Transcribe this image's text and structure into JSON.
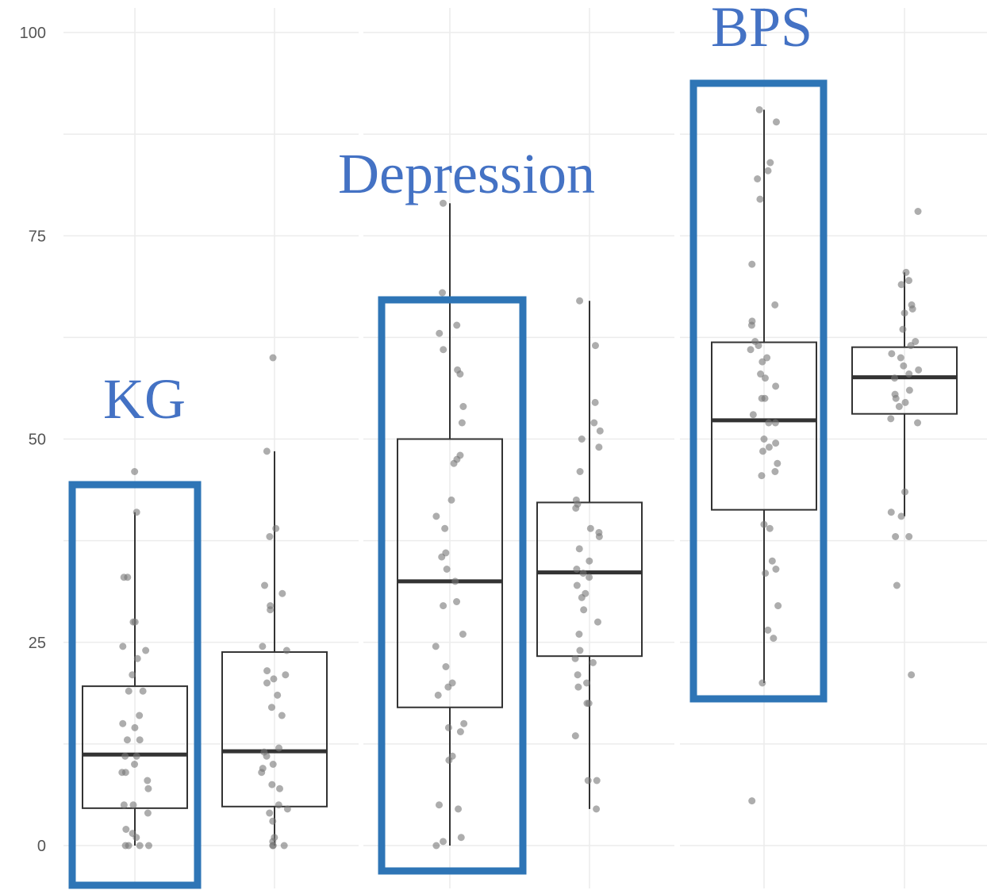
{
  "chart_data": {
    "type": "boxplot",
    "y_ticks": [
      0,
      25,
      50,
      75,
      100
    ],
    "ylim": [
      -5,
      105
    ],
    "grid": true,
    "colors": {
      "grid": "#ececec",
      "box_stroke": "#333333",
      "median": "#333333",
      "points": "#777777",
      "highlight": "#2e75b6",
      "annotation": "#4472c4"
    },
    "annotations": [
      {
        "text": "KG",
        "group": 0
      },
      {
        "text": "Depression",
        "group": 1
      },
      {
        "text": "BPS",
        "group": 2
      }
    ],
    "groups": [
      {
        "boxes": [
          {
            "q1": 4.6,
            "median": 11.2,
            "q3": 19.6,
            "whisker_low": 0,
            "whisker_high": 41,
            "highlighted": true,
            "points": [
              46,
              41,
              33,
              33,
              27.5,
              27.5,
              24.5,
              24,
              23,
              21,
              19,
              19,
              16,
              15,
              14.5,
              13,
              13,
              11,
              11,
              10,
              9,
              9,
              8,
              7,
              5,
              5,
              4,
              2,
              1.5,
              1,
              0,
              0,
              0,
              0
            ]
          },
          {
            "q1": 4.8,
            "median": 11.6,
            "q3": 23.8,
            "whisker_low": 0,
            "whisker_high": 48.5,
            "points": [
              60,
              48.5,
              39,
              38,
              32,
              31,
              29.5,
              29,
              24.5,
              24,
              21.5,
              21,
              20.5,
              20,
              18.5,
              17,
              16,
              12,
              11.5,
              11,
              10,
              9.5,
              9,
              7.5,
              7,
              5,
              4.5,
              4,
              3,
              1,
              0.5,
              0,
              0,
              0
            ]
          }
        ]
      },
      {
        "boxes": [
          {
            "q1": 17,
            "median": 32.5,
            "q3": 50,
            "whisker_low": 0,
            "whisker_high": 79,
            "highlighted": true,
            "points": [
              79,
              68,
              64,
              63,
              61,
              58.5,
              58,
              54,
              52,
              48,
              47.5,
              47,
              42.5,
              40.5,
              39,
              36,
              35.5,
              34,
              32.5,
              30,
              29.5,
              26,
              24.5,
              22,
              20,
              19.5,
              18.5,
              15,
              14.5,
              14,
              11,
              10.5,
              5,
              4.5,
              1,
              0.5,
              0
            ]
          },
          {
            "q1": 23.3,
            "median": 33.6,
            "q3": 42.2,
            "whisker_low": 4.5,
            "whisker_high": 67,
            "points": [
              67,
              61.5,
              54.5,
              52,
              51,
              50,
              49,
              46,
              42.5,
              42,
              41.5,
              39,
              38.5,
              38,
              36.5,
              35,
              34,
              33.5,
              33,
              32,
              31,
              30.5,
              29,
              27.5,
              26,
              24,
              23,
              22.5,
              21,
              20,
              19.5,
              17.5,
              17.5,
              13.5,
              8,
              8,
              4.5
            ]
          }
        ]
      },
      {
        "boxes": [
          {
            "q1": 41.3,
            "median": 52.3,
            "q3": 61.9,
            "whisker_low": 20,
            "whisker_high": 90.5,
            "highlighted": true,
            "points": [
              90.5,
              89,
              84,
              83,
              82,
              79.5,
              71.5,
              66.5,
              64.5,
              64,
              62,
              61.5,
              61,
              60,
              59.5,
              58,
              57.5,
              56.5,
              55,
              55,
              53,
              52,
              52,
              50,
              49.5,
              49,
              48.5,
              47,
              46,
              45.5,
              39.5,
              39,
              35,
              34,
              33.5,
              29.5,
              26.5,
              25.5,
              20,
              5.5
            ]
          },
          {
            "q1": 53.1,
            "median": 57.6,
            "q3": 61.3,
            "whisker_low": 40.5,
            "whisker_high": 70.5,
            "points": [
              78,
              70.5,
              69.5,
              69,
              66.5,
              66,
              65.5,
              63.5,
              62,
              61.5,
              60.5,
              60,
              59,
              58.5,
              58,
              57.5,
              56,
              55.5,
              55,
              54.5,
              54,
              52.5,
              52,
              43.5,
              41,
              40.5,
              38,
              38,
              32,
              21
            ]
          }
        ]
      }
    ]
  }
}
